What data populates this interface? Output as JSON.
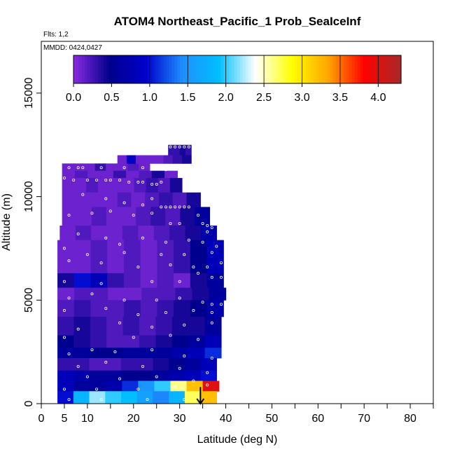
{
  "chart_data": {
    "type": "heatmap",
    "title": "ATOM4 Northeast_Pacific_1 Prob_SeaIceInf",
    "flights_label": "Flts: 1,2",
    "dates_label": "MMDD: 0424,0427",
    "xlabel": "Latitude (deg N)",
    "ylabel": "Altitude (m)",
    "xlim": [
      0,
      85
    ],
    "ylim": [
      0,
      17500
    ],
    "x_ticks": [
      0,
      5,
      10,
      20,
      30,
      40,
      50,
      60,
      70,
      80
    ],
    "x_minor_ticks": [
      15,
      25,
      35,
      45,
      55,
      65,
      75,
      85
    ],
    "y_ticks": [
      0,
      5000,
      10000,
      15000
    ],
    "colorbar": {
      "ticks": [
        "0.0",
        "0.5",
        "1.0",
        "1.5",
        "2.0",
        "2.5",
        "3.0",
        "3.5",
        "4.0"
      ],
      "range": [
        0,
        4.3
      ],
      "colors": [
        "#8a2be2",
        "#00008b",
        "#0000cd",
        "#1e90ff",
        "#00bfff",
        "#ffffff",
        "#ffff00",
        "#ffa500",
        "#ff0000",
        "#a52a2a"
      ]
    },
    "altitude_bands": [
      {
        "alt": [
          11250,
          11600
        ],
        "lat": [
          4.5,
          23.5
        ],
        "values": [
          0.1,
          0.1,
          0.1,
          0.3,
          0.1,
          0.1,
          0.2,
          0.1
        ]
      },
      {
        "alt": [
          10900,
          11250
        ],
        "lat": [
          4.5,
          29.5
        ],
        "values": [
          0.1,
          0.2,
          0.1,
          0.1,
          0.3,
          0.1,
          0.2,
          0.4,
          0.1
        ]
      },
      {
        "alt": [
          12000,
          12500
        ],
        "lat": [
          27.5,
          32.5
        ],
        "values": [
          0.3,
          0.3,
          0.4,
          0.3
        ]
      },
      {
        "alt": [
          11600,
          12000
        ],
        "lat": [
          16.5,
          32.5
        ],
        "values": [
          0.1,
          0.9,
          0.1,
          0.1,
          0.1,
          0.2,
          0.3,
          0.4
        ]
      },
      {
        "alt": [
          10200,
          10900
        ],
        "lat": [
          4.5,
          30.5
        ],
        "values": [
          0.1,
          0.1,
          0.2,
          0.1,
          0.1,
          0.1,
          0.2,
          0.3,
          0.2,
          0.4
        ]
      },
      {
        "alt": [
          9500,
          10200
        ],
        "lat": [
          4.5,
          34.5
        ],
        "values": [
          0.1,
          0.1,
          0.1,
          0.1,
          0.2,
          0.1,
          0.2,
          0.3,
          0.2,
          0.4
        ]
      },
      {
        "alt": [
          8600,
          9500
        ],
        "lat": [
          4.5,
          36.5
        ],
        "values": [
          0.1,
          0.1,
          0.2,
          0.1,
          0.1,
          0.2,
          0.3,
          0.2,
          0.4,
          0.6
        ]
      },
      {
        "alt": [
          7900,
          8600
        ],
        "lat": [
          4.0,
          38.0
        ],
        "values": [
          0.1,
          0.2,
          0.1,
          0.1,
          0.2,
          0.1,
          0.2,
          0.3,
          0.4,
          0.7
        ]
      },
      {
        "alt": [
          6300,
          7900
        ],
        "lat": [
          3.5,
          39.5
        ],
        "values": [
          0.1,
          0.1,
          0.2,
          0.1,
          0.2,
          0.1,
          0.2,
          0.3,
          0.5,
          0.8
        ]
      },
      {
        "alt": [
          5600,
          6300
        ],
        "lat": [
          3.5,
          39.5
        ],
        "values": [
          0.4,
          1.0,
          0.8,
          0.3,
          0.2,
          0.1,
          0.2,
          0.1,
          0.4,
          0.6
        ]
      },
      {
        "alt": [
          5000,
          5600
        ],
        "lat": [
          3.5,
          40.0
        ],
        "values": [
          0.1,
          0.2,
          0.2,
          0.1,
          0.1,
          0.2,
          0.2,
          0.3,
          0.4,
          0.6
        ]
      },
      {
        "alt": [
          4200,
          5000
        ],
        "lat": [
          3.5,
          39.5
        ],
        "values": [
          0.2,
          0.3,
          0.2,
          0.2,
          0.3,
          0.2,
          0.3,
          0.4,
          0.5,
          0.7
        ]
      },
      {
        "alt": [
          3300,
          4200
        ],
        "lat": [
          3.5,
          39.0
        ],
        "values": [
          0.3,
          0.4,
          0.3,
          0.2,
          0.3,
          0.2,
          0.3,
          0.4,
          0.4,
          0.6
        ]
      },
      {
        "alt": [
          2700,
          3300
        ],
        "lat": [
          3.5,
          39.0
        ],
        "values": [
          0.5,
          0.4,
          0.3,
          0.2,
          0.2,
          0.3,
          0.4,
          0.5,
          0.6,
          0.8
        ]
      },
      {
        "alt": [
          2200,
          2700
        ],
        "lat": [
          3.5,
          39.0
        ],
        "values": [
          0.6,
          0.6,
          0.5,
          0.5,
          0.6,
          0.6,
          0.6,
          0.7,
          0.8,
          1.1
        ]
      },
      {
        "alt": [
          1600,
          2200
        ],
        "lat": [
          3.5,
          38.0
        ],
        "values": [
          0.3,
          0.3,
          0.2,
          0.2,
          0.3,
          0.3,
          0.4,
          0.5,
          0.6,
          0.8
        ]
      },
      {
        "alt": [
          1100,
          1600
        ],
        "lat": [
          3.5,
          38.0
        ],
        "values": [
          0.8,
          0.7,
          0.6,
          0.6,
          0.5,
          0.5,
          0.6,
          0.7,
          0.8,
          1.0
        ]
      },
      {
        "alt": [
          600,
          1100
        ],
        "lat": [
          3.5,
          38.5
        ],
        "values": [
          0.8,
          0.6,
          0.6,
          0.7,
          1.1,
          1.5,
          2.0,
          2.6,
          3.2,
          4.0
        ]
      },
      {
        "alt": [
          0,
          600
        ],
        "lat": [
          3.5,
          38.0
        ],
        "values": [
          1.0,
          1.8,
          2.2,
          2.0,
          1.9,
          1.6,
          1.4,
          1.8,
          2.7,
          3.2
        ]
      }
    ],
    "obs_points": [
      [
        17,
        12200
      ],
      [
        25,
        12100
      ],
      [
        28,
        12400
      ],
      [
        29,
        12400
      ],
      [
        30,
        12400
      ],
      [
        31,
        12400
      ],
      [
        32,
        12400
      ],
      [
        6,
        11400
      ],
      [
        8,
        11400
      ],
      [
        9,
        11400
      ],
      [
        13,
        11400
      ],
      [
        18,
        11400
      ],
      [
        22,
        11400
      ],
      [
        27,
        11300
      ],
      [
        5,
        10900
      ],
      [
        7,
        10800
      ],
      [
        10,
        10800
      ],
      [
        12,
        10800
      ],
      [
        14,
        10800
      ],
      [
        15,
        10800
      ],
      [
        17,
        10800
      ],
      [
        19,
        10700
      ],
      [
        21,
        10700
      ],
      [
        22,
        10700
      ],
      [
        24,
        10600
      ],
      [
        25,
        10600
      ],
      [
        26,
        10700
      ],
      [
        4,
        10000
      ],
      [
        9,
        10100
      ],
      [
        14,
        9900
      ],
      [
        18,
        9700
      ],
      [
        22,
        9600
      ],
      [
        24,
        9900
      ],
      [
        26,
        9500
      ],
      [
        27,
        9500
      ],
      [
        28,
        9500
      ],
      [
        29,
        9500
      ],
      [
        30,
        9500
      ],
      [
        31,
        9500
      ],
      [
        32,
        9500
      ],
      [
        34,
        9100
      ],
      [
        6,
        9100
      ],
      [
        11,
        9200
      ],
      [
        15,
        9300
      ],
      [
        20,
        9100
      ],
      [
        24,
        9200
      ],
      [
        28,
        8700
      ],
      [
        30,
        8700
      ],
      [
        35,
        8700
      ],
      [
        36,
        8600
      ],
      [
        37,
        8500
      ],
      [
        36,
        8300
      ],
      [
        8,
        8200
      ],
      [
        14,
        8000
      ],
      [
        17,
        7700
      ],
      [
        22,
        8000
      ],
      [
        27,
        7800
      ],
      [
        32,
        7900
      ],
      [
        35,
        7800
      ],
      [
        38,
        7600
      ],
      [
        5,
        7500
      ],
      [
        10,
        7200
      ],
      [
        18,
        7300
      ],
      [
        26,
        7200
      ],
      [
        31,
        7200
      ],
      [
        37,
        7300
      ],
      [
        6,
        6900
      ],
      [
        13,
        6800
      ],
      [
        21,
        6600
      ],
      [
        28,
        6700
      ],
      [
        33,
        6600
      ],
      [
        36,
        6600
      ],
      [
        39,
        6800
      ],
      [
        5,
        5900
      ],
      [
        13,
        5800
      ],
      [
        24,
        5900
      ],
      [
        30,
        5900
      ],
      [
        34,
        6300
      ],
      [
        37,
        6100
      ],
      [
        39,
        6100
      ],
      [
        6,
        5100
      ],
      [
        11,
        5300
      ],
      [
        18,
        5000
      ],
      [
        25,
        5000
      ],
      [
        30,
        5100
      ],
      [
        35,
        4900
      ],
      [
        37,
        4800
      ],
      [
        39,
        4800
      ],
      [
        5,
        4500
      ],
      [
        14,
        4600
      ],
      [
        21,
        4300
      ],
      [
        27,
        4400
      ],
      [
        33,
        4500
      ],
      [
        37,
        4400
      ],
      [
        8,
        3600
      ],
      [
        17,
        3900
      ],
      [
        24,
        3700
      ],
      [
        31,
        3800
      ],
      [
        37,
        3900
      ],
      [
        5,
        3200
      ],
      [
        11,
        2600
      ],
      [
        20,
        3200
      ],
      [
        28,
        3300
      ],
      [
        34,
        3100
      ],
      [
        6,
        2400
      ],
      [
        16,
        2500
      ],
      [
        24,
        2600
      ],
      [
        31,
        2300
      ],
      [
        37,
        2200
      ],
      [
        8,
        1800
      ],
      [
        14,
        2000
      ],
      [
        22,
        1800
      ],
      [
        30,
        1700
      ],
      [
        36,
        1500
      ],
      [
        10,
        1300
      ],
      [
        17,
        1200
      ],
      [
        25,
        1300
      ],
      [
        33,
        1100
      ],
      [
        5,
        700
      ],
      [
        12,
        700
      ],
      [
        21,
        700
      ],
      [
        29,
        800
      ],
      [
        36,
        900
      ],
      [
        6,
        200
      ],
      [
        13,
        200
      ],
      [
        23,
        200
      ],
      [
        31,
        200
      ]
    ],
    "arrow": {
      "lat": 34.5,
      "alt_from": 800,
      "alt_to": 0
    }
  }
}
